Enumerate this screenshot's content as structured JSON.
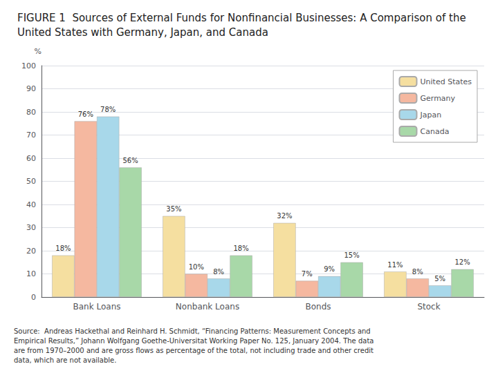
{
  "chart_data": {
    "type": "bar",
    "title": "FIGURE 1  Sources of External Funds for Nonfinancial Businesses: A Comparison of the United States with Germany, Japan, and Canada",
    "ylabel": "%",
    "categories": [
      "Bank Loans",
      "Nonbank Loans",
      "Bonds",
      "Stock"
    ],
    "series": [
      {
        "name": "United States",
        "color": "#F5DFA0",
        "values": [
          18,
          35,
          32,
          11
        ],
        "value_labels": [
          "18%",
          "35%",
          "32%",
          "11%"
        ]
      },
      {
        "name": "Germany",
        "color": "#F5B8A0",
        "values": [
          76,
          10,
          7,
          8
        ],
        "value_labels": [
          "76%",
          "10%",
          "7%",
          "8%"
        ]
      },
      {
        "name": "Japan",
        "color": "#A8D8EA",
        "values": [
          78,
          8,
          9,
          5
        ],
        "value_labels": [
          "78%",
          "8%",
          "9%",
          "5%"
        ]
      },
      {
        "name": "Canada",
        "color": "#A8D8A8",
        "values": [
          56,
          18,
          15,
          12
        ],
        "value_labels": [
          "56%",
          "18%",
          "15%",
          "12%"
        ]
      }
    ],
    "ylim": [
      0,
      100
    ],
    "yticks": [
      0,
      10,
      20,
      30,
      40,
      50,
      60,
      70,
      80,
      90,
      100
    ],
    "grid": true,
    "legend": "upper right",
    "data_labels": true,
    "annotations": [
      "Source:  Andreas Hackethal and Reinhard H. Schmidt, “Financing Patterns: Measurement Concepts and\nEmpirical Results,” Johann Wolfgang Goethe-Universitat Working Paper No. 125, January 2004. The data\nare from 1970–2000 and are gross flows as percentage of the total, not including trade and other credit\ndata, which are not available."
    ]
  }
}
